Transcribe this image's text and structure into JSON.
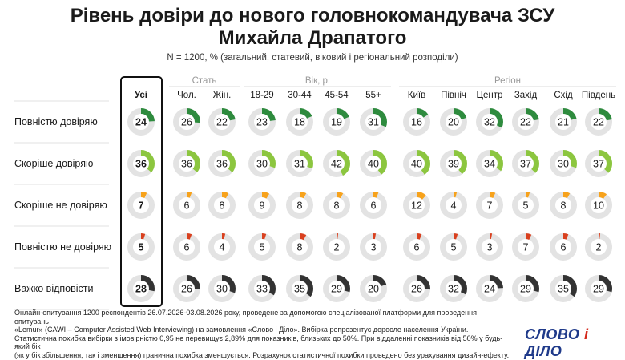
{
  "title_line1": "Рівень довіри до нового головнокомандувача ЗСУ",
  "title_line2": "Михайла Драпатого",
  "subtitle": "N = 1200, % (загальний, статевий, віковий і регіональний розподіли)",
  "groups": [
    {
      "label": ""
    },
    {
      "label": "Стать"
    },
    {
      "label": "Вік, р."
    },
    {
      "label": "Регіон"
    }
  ],
  "columns": [
    "Усі",
    "Чол.",
    "Жін.",
    "18-29",
    "30-44",
    "45-54",
    "55+",
    "Київ",
    "Північ",
    "Центр",
    "Захід",
    "Схід",
    "Південь"
  ],
  "rows": [
    {
      "label": "Повністю довіряю",
      "color": "#2e8b3e",
      "values": [
        24,
        26,
        22,
        23,
        18,
        19,
        31,
        16,
        20,
        32,
        22,
        21,
        22
      ]
    },
    {
      "label": "Скоріше довіряю",
      "color": "#8cc63f",
      "values": [
        36,
        36,
        36,
        30,
        31,
        42,
        40,
        40,
        39,
        34,
        37,
        30,
        37
      ]
    },
    {
      "label": "Скоріше не довіряю",
      "color": "#f7a21b",
      "values": [
        7,
        6,
        8,
        9,
        8,
        8,
        6,
        12,
        4,
        7,
        5,
        8,
        10
      ]
    },
    {
      "label": "Повністю не довіряю",
      "color": "#d9401e",
      "values": [
        5,
        6,
        4,
        5,
        8,
        2,
        3,
        6,
        5,
        3,
        7,
        6,
        2
      ]
    },
    {
      "label": "Важко відповісти",
      "color": "#333333",
      "values": [
        28,
        26,
        30,
        33,
        35,
        29,
        20,
        26,
        32,
        24,
        29,
        35,
        29
      ]
    }
  ],
  "chart_data": {
    "type": "donut-grid",
    "title": "Рівень довіри до нового головнокомандувача ЗСУ Михайла Драпатого",
    "subtitle": "N = 1200, % (загальний, статевий, віковий і регіональний розподіли)",
    "categories": [
      "Усі",
      "Чол.",
      "Жін.",
      "18-29",
      "30-44",
      "45-54",
      "55+",
      "Київ",
      "Північ",
      "Центр",
      "Захід",
      "Схід",
      "Південь"
    ],
    "series": [
      {
        "name": "Повністю довіряю",
        "values": [
          24,
          26,
          22,
          23,
          18,
          19,
          31,
          16,
          20,
          32,
          22,
          21,
          22
        ]
      },
      {
        "name": "Скоріше довіряю",
        "values": [
          36,
          36,
          36,
          30,
          31,
          42,
          40,
          40,
          39,
          34,
          37,
          30,
          37
        ]
      },
      {
        "name": "Скоріше не довіряю",
        "values": [
          7,
          6,
          8,
          9,
          8,
          8,
          6,
          12,
          4,
          7,
          5,
          8,
          10
        ]
      },
      {
        "name": "Повністю не довіряю",
        "values": [
          5,
          6,
          4,
          5,
          8,
          2,
          3,
          6,
          5,
          3,
          7,
          6,
          2
        ]
      },
      {
        "name": "Важко відповісти",
        "values": [
          28,
          26,
          30,
          33,
          35,
          29,
          20,
          26,
          32,
          24,
          29,
          35,
          29
        ]
      }
    ]
  },
  "footnote_lines": [
    "Онлайн-опитування 1200 респондентів 26.07.2026-03.08.2026 року, проведене за допомогою спеціалізованої платформи для проведення опитувань",
    "«Lemur» (CAWI – Computer Assisted Web Interviewing) на замовлення «Слово і Діло». Вибірка репрезентує доросле населення України.",
    "Статистична похибка вибірки з імовірністю 0,95 не перевищує 2,89% для показників, близьких до 50%. При віддаленні показників від 50% у будь-який бік",
    "(як у бік збільшення, так і зменшення) гранична похибка зменшується. Розрахунок статистичної похибки проведено без урахування дизайн-ефекту."
  ],
  "logo": {
    "word1": "СЛОВО",
    "amp": "і",
    "word2": "ДІЛО"
  }
}
